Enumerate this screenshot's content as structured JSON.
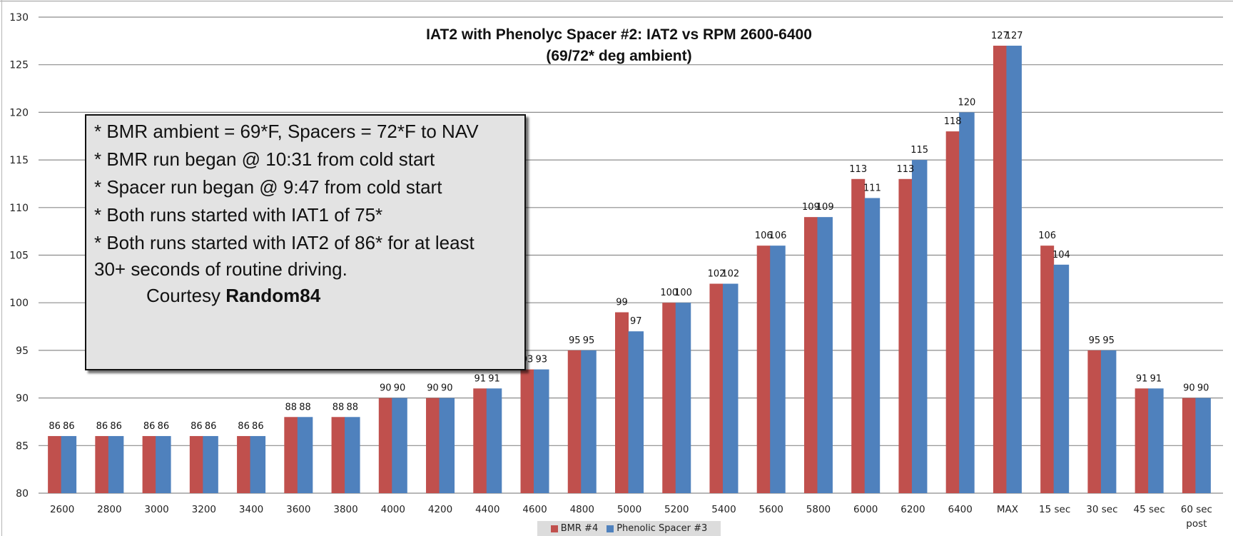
{
  "chart_data": {
    "type": "bar",
    "title": "IAT2 with Phenolyc Spacer #2: IAT2 vs RPM 2600-6400",
    "subtitle": "(69/72* deg ambient)",
    "xlabel": "",
    "ylabel": "",
    "ylim": [
      80,
      130
    ],
    "yticks": [
      80,
      85,
      90,
      95,
      100,
      105,
      110,
      115,
      120,
      125,
      130
    ],
    "grid": true,
    "legend_position": "bottom",
    "categories": [
      "2600",
      "2800",
      "3000",
      "3200",
      "3400",
      "3600",
      "3800",
      "4000",
      "4200",
      "4400",
      "4600",
      "4800",
      "5000",
      "5200",
      "5400",
      "5600",
      "5800",
      "6000",
      "6200",
      "6400",
      "MAX",
      "15 sec",
      "30 sec",
      "45 sec",
      "60 sec post"
    ],
    "series": [
      {
        "name": "BMR #4",
        "color": "#c0504d",
        "values": [
          86,
          86,
          86,
          86,
          86,
          88,
          88,
          90,
          90,
          91,
          93,
          95,
          99,
          100,
          102,
          106,
          109,
          113,
          113,
          118,
          127,
          106,
          95,
          91,
          90
        ]
      },
      {
        "name": "Phenolic Spacer #3",
        "color": "#4f81bd",
        "values": [
          86,
          86,
          86,
          86,
          86,
          88,
          88,
          90,
          90,
          91,
          93,
          95,
          97,
          100,
          102,
          106,
          109,
          111,
          115,
          120,
          127,
          104,
          95,
          91,
          90
        ]
      }
    ]
  },
  "annotation": {
    "lines": [
      "* BMR ambient = 69*F, Spacers = 72*F to NAV",
      "* BMR run began @ 10:31 from cold start",
      "* Spacer run began @ 9:47 from cold start",
      "* Both runs started with IAT1 of 75*",
      "* Both runs started with IAT2 of 86* for at least",
      "30+ seconds of routine driving."
    ],
    "courtesy_prefix": "Courtesy",
    "courtesy_name": "Random84"
  }
}
